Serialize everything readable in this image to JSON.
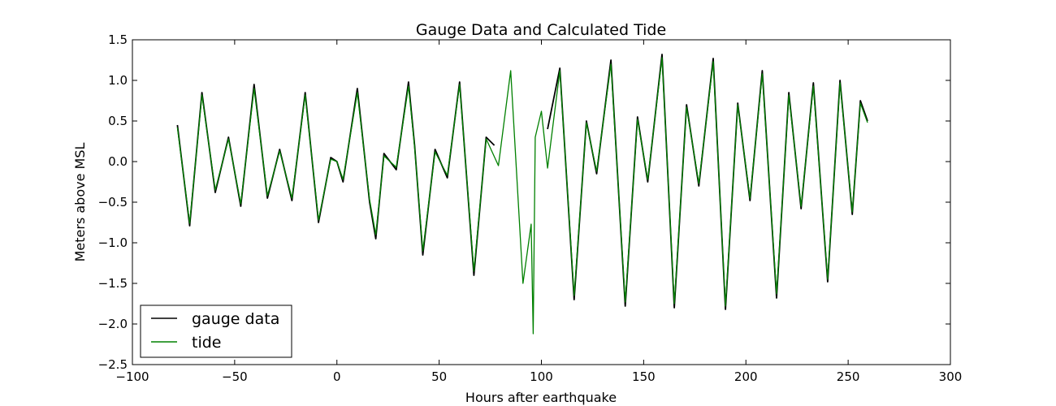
{
  "chart_data": {
    "type": "line",
    "title": "Gauge Data and Calculated Tide",
    "xlabel": "Hours after earthquake",
    "ylabel": "Meters above MSL",
    "xlim": [
      -100,
      300
    ],
    "ylim": [
      -2.5,
      1.5
    ],
    "xticks": [
      -100,
      -50,
      0,
      50,
      100,
      150,
      200,
      250,
      300
    ],
    "xtick_labels": [
      "−100",
      "−50",
      "0",
      "50",
      "100",
      "150",
      "200",
      "250",
      "300"
    ],
    "yticks": [
      -2.5,
      -2.0,
      -1.5,
      -1.0,
      -0.5,
      0.0,
      0.5,
      1.0,
      1.5
    ],
    "ytick_labels": [
      "−2.5",
      "−2.0",
      "−1.5",
      "−1.0",
      "−0.5",
      "0.0",
      "0.5",
      "1.0",
      "1.5"
    ],
    "grid": false,
    "legend_position": "bottom-left",
    "series": [
      {
        "name": "gauge data",
        "color": "#000000",
        "segments": [
          {
            "x": [
              -78,
              -72,
              -66,
              -59.5,
              -53,
              -47,
              -40.5,
              -34,
              -28,
              -22,
              -15.5,
              -9,
              -3,
              0,
              3,
              10,
              16,
              19,
              23,
              29,
              35,
              38,
              42,
              48,
              54,
              60,
              67,
              73,
              77
            ],
            "y": [
              0.45,
              -0.79,
              0.85,
              -0.38,
              0.3,
              -0.55,
              0.95,
              -0.45,
              0.15,
              -0.48,
              0.85,
              -0.75,
              0.05,
              0.0,
              -0.25,
              0.9,
              -0.5,
              -0.95,
              0.1,
              -0.1,
              0.98,
              0.2,
              -1.15,
              0.15,
              -0.2,
              0.98,
              -1.4,
              0.3,
              0.2
            ]
          },
          {
            "x": [
              103,
              109,
              116,
              122,
              127,
              134,
              141,
              147,
              152,
              159,
              165,
              171,
              177,
              184,
              190,
              196,
              202,
              208,
              215,
              221,
              227,
              233,
              240,
              246,
              252,
              256,
              259.5
            ],
            "y": [
              0.4,
              1.15,
              -1.7,
              0.5,
              -0.15,
              1.25,
              -1.78,
              0.55,
              -0.25,
              1.32,
              -1.8,
              0.7,
              -0.3,
              1.27,
              -1.82,
              0.72,
              -0.48,
              1.12,
              -1.68,
              0.85,
              -0.58,
              0.97,
              -1.48,
              1.0,
              -0.65,
              0.75,
              0.5
            ]
          }
        ]
      },
      {
        "name": "tide",
        "color": "#008000",
        "segments": [
          {
            "x": [
              -78,
              -72,
              -66,
              -59.5,
              -53,
              -47,
              -40.5,
              -34,
              -28,
              -22,
              -15.5,
              -9,
              -3,
              0,
              3,
              10,
              16,
              19,
              23,
              29,
              35,
              38,
              42,
              48,
              54,
              60,
              67,
              73,
              79,
              85,
              91,
              95,
              96,
              97,
              100,
              103,
              109,
              116,
              122,
              127,
              134,
              141,
              147,
              152,
              159,
              165,
              171,
              177,
              184,
              190,
              196,
              202,
              208,
              215,
              221,
              227,
              233,
              240,
              246,
              252,
              256,
              259.5
            ],
            "y": [
              0.42,
              -0.76,
              0.82,
              -0.35,
              0.28,
              -0.52,
              0.9,
              -0.42,
              0.13,
              -0.45,
              0.82,
              -0.72,
              0.03,
              0.0,
              -0.22,
              0.85,
              -0.47,
              -0.9,
              0.07,
              -0.07,
              0.93,
              0.18,
              -1.1,
              0.12,
              -0.17,
              0.95,
              -1.35,
              0.28,
              -0.05,
              1.12,
              -1.5,
              -0.77,
              -2.12,
              0.3,
              0.62,
              -0.08,
              1.12,
              -1.65,
              0.48,
              -0.12,
              1.2,
              -1.73,
              0.52,
              -0.22,
              1.28,
              -1.75,
              0.67,
              -0.27,
              1.23,
              -1.78,
              0.7,
              -0.45,
              1.08,
              -1.63,
              0.82,
              -0.55,
              0.93,
              -1.45,
              0.97,
              -0.62,
              0.72,
              0.48
            ]
          }
        ]
      }
    ]
  }
}
